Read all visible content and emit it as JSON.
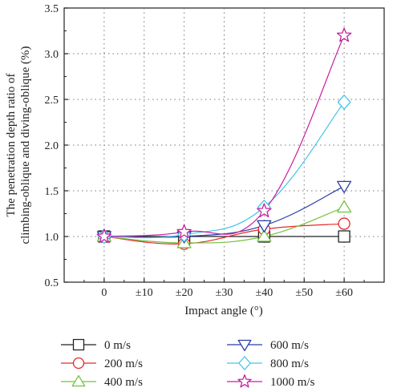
{
  "chart_data": {
    "type": "line",
    "title": "",
    "xlabel": "Impact angle (°)",
    "ylabel_line1": "The penetration depth ratio of",
    "ylabel_line2": "climbing-oblique and diving-oblique (%)",
    "x": [
      0,
      10,
      20,
      30,
      40,
      50,
      60
    ],
    "x_tick_labels": [
      "0",
      "±10",
      "±20",
      "±30",
      "±40",
      "±50",
      "±60"
    ],
    "xlim": [
      -10,
      70
    ],
    "ylim": [
      0.5,
      3.5
    ],
    "y_ticks": [
      0.5,
      1.0,
      1.5,
      2.0,
      2.5,
      3.0,
      3.5
    ],
    "y_tick_labels": [
      "0.5",
      "1.0",
      "1.5",
      "2.0",
      "2.5",
      "3.0",
      "3.5"
    ],
    "grid": true,
    "legend_position": "bottom",
    "series": [
      {
        "name": "0 m/s",
        "color": "#222222",
        "marker": "square",
        "x": [
          0,
          20,
          40,
          60
        ],
        "values": [
          1.0,
          1.0,
          1.0,
          1.0
        ]
      },
      {
        "name": "200 m/s",
        "color": "#e8282b",
        "marker": "circle",
        "x": [
          0,
          20,
          40,
          60
        ],
        "values": [
          1.0,
          0.92,
          1.08,
          1.14
        ]
      },
      {
        "name": "400 m/s",
        "color": "#74c23f",
        "marker": "triangle-up",
        "x": [
          0,
          20,
          40,
          60
        ],
        "values": [
          1.0,
          0.93,
          1.0,
          1.32
        ]
      },
      {
        "name": "600 m/s",
        "color": "#283ea8",
        "marker": "triangle-down",
        "x": [
          0,
          20,
          40,
          60
        ],
        "values": [
          1.0,
          1.0,
          1.12,
          1.55
        ]
      },
      {
        "name": "800 m/s",
        "color": "#45c5e8",
        "marker": "diamond",
        "x": [
          0,
          20,
          40,
          60
        ],
        "values": [
          1.0,
          1.02,
          1.32,
          2.47
        ]
      },
      {
        "name": "1000 m/s",
        "color": "#c8209d",
        "marker": "star",
        "x": [
          0,
          20,
          40,
          60
        ],
        "values": [
          1.0,
          1.05,
          1.28,
          3.2
        ]
      }
    ]
  }
}
